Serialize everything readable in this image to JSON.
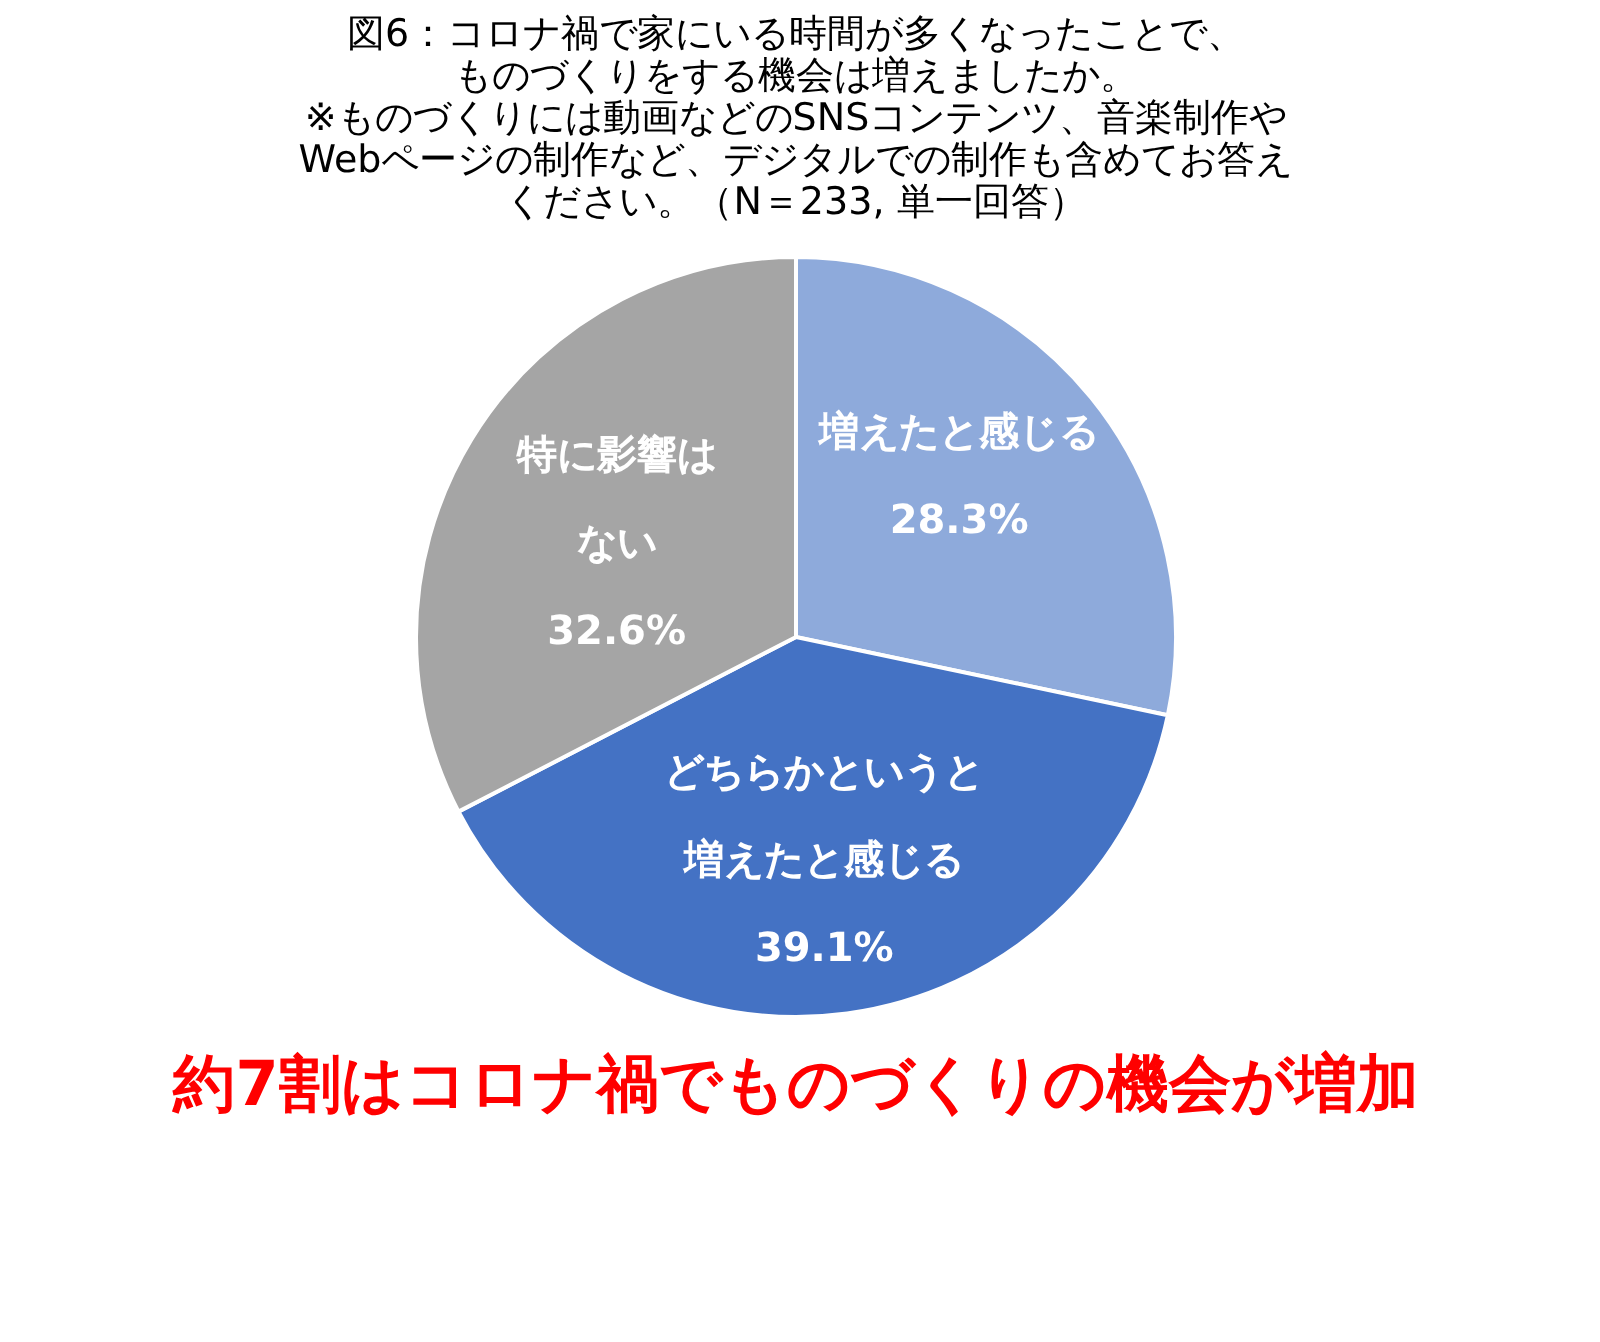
{
  "chart_data": {
    "type": "pie",
    "title": "図6：コロナ禍で家にいる時間が多くなったことで、ものづくりをする機会は増えましたか。※ものづくりには動画などのSNSコンテンツ、音楽制作やWebページの制作など、デジタルでの制作も含めてお答えください。（N＝233, 単一回答）",
    "categories": [
      "増えたと感じる",
      "どちらかというと増えたと感じる",
      "特に影響はない"
    ],
    "values": [
      28.3,
      39.1,
      32.6
    ],
    "value_labels": [
      "28.3%",
      "39.1%",
      "32.6%"
    ],
    "colors": [
      "#8eaadb",
      "#4472c4",
      "#a5a5a5"
    ],
    "legend": false,
    "annotations": [
      "約7割はコロナ禍でものづくりの機会が増加"
    ]
  }
}
